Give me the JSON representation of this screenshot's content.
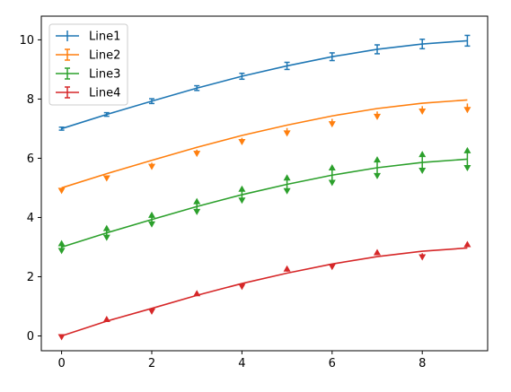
{
  "chart_data": {
    "type": "line",
    "title": "",
    "xlabel": "",
    "ylabel": "",
    "xlim": [
      -0.45,
      9.45
    ],
    "ylim": [
      -0.5,
      10.8
    ],
    "xticks": [
      0,
      2,
      4,
      6,
      8
    ],
    "yticks": [
      0,
      2,
      4,
      6,
      8,
      10
    ],
    "grid": false,
    "legend_position": "top-left",
    "x": [
      0,
      1,
      2,
      3,
      4,
      5,
      6,
      7,
      8,
      9
    ],
    "series": [
      {
        "name": "Line1",
        "color": "#1f77b4",
        "errorbar": "symmetric",
        "y": [
          7.0,
          7.48,
          7.93,
          8.37,
          8.77,
          9.12,
          9.43,
          9.68,
          9.86,
          9.97
        ],
        "err": [
          0.05,
          0.06,
          0.08,
          0.08,
          0.1,
          0.12,
          0.13,
          0.15,
          0.16,
          0.18
        ]
      },
      {
        "name": "Line2",
        "color": "#ff7f0e",
        "errorbar": "lower-limit",
        "y": [
          5.0,
          5.48,
          5.93,
          6.37,
          6.77,
          7.12,
          7.43,
          7.68,
          7.86,
          7.97
        ],
        "err": [
          0.1,
          0.15,
          0.2,
          0.2,
          0.2,
          0.25,
          0.25,
          0.25,
          0.25,
          0.3
        ]
      },
      {
        "name": "Line3",
        "color": "#2ca02c",
        "errorbar": "both-limits",
        "y": [
          3.0,
          3.48,
          3.93,
          4.37,
          4.77,
          5.12,
          5.43,
          5.68,
          5.86,
          5.97
        ],
        "err": [
          0.15,
          0.18,
          0.18,
          0.2,
          0.22,
          0.25,
          0.28,
          0.3,
          0.3,
          0.32
        ]
      },
      {
        "name": "Line4",
        "color": "#d62728",
        "errorbar": "alternating-limits",
        "y": [
          0.0,
          0.5,
          0.93,
          1.37,
          1.77,
          2.12,
          2.43,
          2.68,
          2.86,
          2.97
        ],
        "err": [
          0.12,
          0.14,
          0.16,
          0.18,
          0.2,
          0.22,
          0.24,
          0.26,
          0.28,
          0.3
        ]
      }
    ]
  }
}
